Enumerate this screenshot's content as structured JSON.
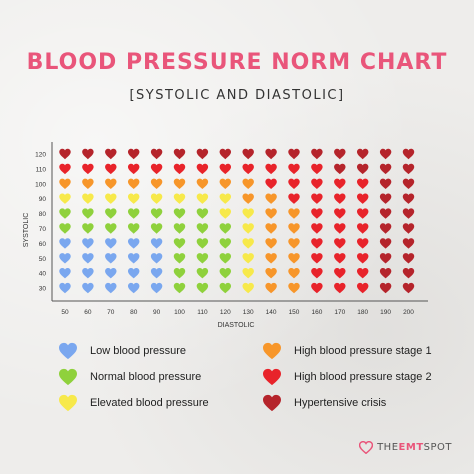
{
  "header": {
    "title": "BLOOD PRESSURE NORM CHART",
    "subtitle": "[SYSTOLIC AND DIASTOLIC]"
  },
  "colors": {
    "low": "#7aa7ef",
    "normal": "#8fd13c",
    "elevated": "#f7e94a",
    "stage1": "#f7962a",
    "stage2": "#e8232a",
    "crisis": "#b5242b"
  },
  "legend": [
    {
      "key": "low",
      "label": "Low blood pressure",
      "icon": "heart-icon"
    },
    {
      "key": "normal",
      "label": "Normal blood pressure",
      "icon": "heart-icon"
    },
    {
      "key": "elevated",
      "label": "Elevated blood pressure",
      "icon": "heart-icon"
    },
    {
      "key": "stage1",
      "label": "High blood pressure stage 1",
      "icon": "heart-icon"
    },
    {
      "key": "stage2",
      "label": "High blood pressure stage 2",
      "icon": "heart-icon"
    },
    {
      "key": "crisis",
      "label": "Hypertensive crisis",
      "icon": "heart-icon"
    }
  ],
  "logo": {
    "prefix": "THE",
    "bold": "EMT",
    "suffix": "SPOT"
  },
  "chart_data": {
    "type": "heatmap",
    "xlabel": "DIASTOLIC",
    "ylabel": "SYSTOLIC",
    "x": [
      50,
      60,
      70,
      80,
      90,
      100,
      110,
      120,
      130,
      140,
      150,
      160,
      170,
      180,
      190,
      200
    ],
    "y": [
      30,
      40,
      50,
      60,
      70,
      80,
      90,
      100,
      110,
      120
    ],
    "grid": false,
    "legend_position": "bottom",
    "rows": [
      [
        "crisis",
        "crisis",
        "crisis",
        "crisis",
        "crisis",
        "crisis",
        "crisis",
        "crisis",
        "crisis",
        "crisis",
        "crisis",
        "crisis",
        "crisis",
        "crisis",
        "crisis",
        "crisis"
      ],
      [
        "stage2",
        "stage2",
        "stage2",
        "stage2",
        "stage2",
        "stage2",
        "stage2",
        "stage2",
        "stage2",
        "stage2",
        "stage2",
        "stage2",
        "crisis",
        "crisis",
        "crisis",
        "crisis"
      ],
      [
        "stage1",
        "stage1",
        "stage1",
        "stage1",
        "stage1",
        "stage1",
        "stage1",
        "stage1",
        "stage1",
        "stage2",
        "stage2",
        "stage2",
        "stage2",
        "stage2",
        "crisis",
        "crisis"
      ],
      [
        "elevated",
        "elevated",
        "elevated",
        "elevated",
        "elevated",
        "elevated",
        "elevated",
        "elevated",
        "stage1",
        "stage1",
        "stage2",
        "stage2",
        "stage2",
        "stage2",
        "crisis",
        "crisis"
      ],
      [
        "normal",
        "normal",
        "normal",
        "normal",
        "normal",
        "normal",
        "normal",
        "elevated",
        "elevated",
        "stage1",
        "stage1",
        "stage2",
        "stage2",
        "stage2",
        "crisis",
        "crisis"
      ],
      [
        "normal",
        "normal",
        "normal",
        "normal",
        "normal",
        "normal",
        "normal",
        "normal",
        "elevated",
        "stage1",
        "stage1",
        "stage2",
        "stage2",
        "stage2",
        "crisis",
        "crisis"
      ],
      [
        "low",
        "low",
        "low",
        "low",
        "low",
        "normal",
        "normal",
        "normal",
        "elevated",
        "stage1",
        "stage1",
        "stage2",
        "stage2",
        "stage2",
        "crisis",
        "crisis"
      ],
      [
        "low",
        "low",
        "low",
        "low",
        "low",
        "normal",
        "normal",
        "normal",
        "elevated",
        "stage1",
        "stage1",
        "stage2",
        "stage2",
        "stage2",
        "crisis",
        "crisis"
      ],
      [
        "low",
        "low",
        "low",
        "low",
        "low",
        "normal",
        "normal",
        "normal",
        "elevated",
        "stage1",
        "stage1",
        "stage2",
        "stage2",
        "stage2",
        "crisis",
        "crisis"
      ],
      [
        "low",
        "low",
        "low",
        "low",
        "low",
        "normal",
        "normal",
        "normal",
        "elevated",
        "stage1",
        "stage1",
        "stage2",
        "stage2",
        "stage2",
        "crisis",
        "crisis"
      ]
    ]
  }
}
